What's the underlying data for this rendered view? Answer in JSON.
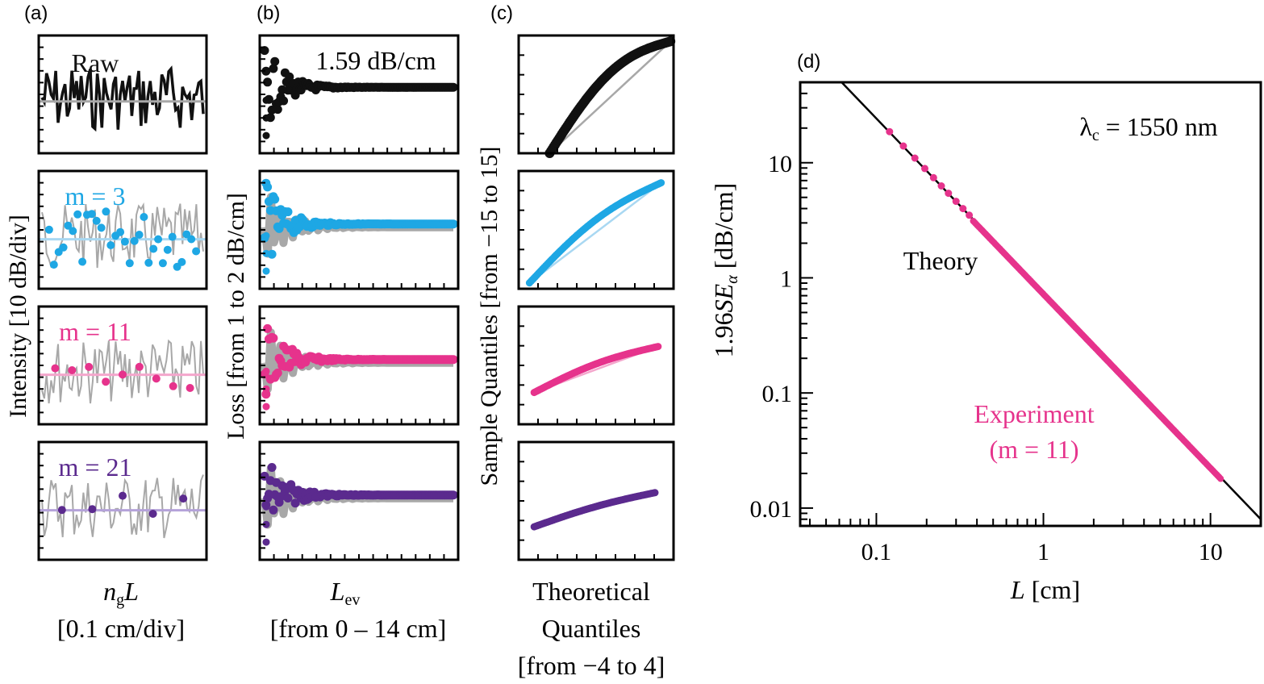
{
  "colors": {
    "black": "#111111",
    "raw_gray": "#a8a8a8",
    "m3": "#1ea7e4",
    "m3_light": "#a9d8f2",
    "m11": "#e6338c",
    "m11_light": "#f4a6cc",
    "m21": "#5b2a8e",
    "m21_light": "#b4a2d9",
    "theory": "#000000"
  },
  "panel_a": {
    "label": "(a)",
    "ylabel": "Intensity [10 dB/div]",
    "xlabel_var": "n",
    "xlabel_sub": "g",
    "xlabel_var2": "L",
    "xlabel_unit": "[0.1 cm/div]",
    "rows": [
      {
        "tag": "Raw",
        "color_key": "black"
      },
      {
        "tag": "m = 3",
        "color_key": "m3"
      },
      {
        "tag": "m = 11",
        "color_key": "m11"
      },
      {
        "tag": "m = 21",
        "color_key": "m21"
      }
    ]
  },
  "panel_b": {
    "label": "(b)",
    "ylabel": "Loss [from 1 to 2 dB/cm]",
    "xlabel_var": "L",
    "xlabel_sub": "ev",
    "xlabel_unit": "[from 0 – 14 cm]",
    "annotation": "1.59 dB/cm"
  },
  "panel_c": {
    "label": "(c)",
    "ylabel": "Sample Quantiles [from −15 to 15]",
    "xlabel_line1": "Theoretical",
    "xlabel_line2": "Quantiles",
    "xlabel_line3": "[from −4 to 4]"
  },
  "chart_data": {
    "type": "scatter",
    "label": "(d)",
    "xlabel_var": "L",
    "xlabel_unit": "[cm]",
    "ylabel_prefix": "1.96",
    "ylabel_var": "SE",
    "ylabel_sub": "α",
    "ylabel_unit": "[dB/cm]",
    "x_scale": "log",
    "y_scale": "log",
    "xlim": [
      0.035,
      20
    ],
    "ylim": [
      0.007,
      50
    ],
    "x_ticks": [
      0.1,
      1,
      10
    ],
    "x_tick_labels": [
      "0.1",
      "1",
      "10"
    ],
    "y_ticks": [
      0.01,
      0.1,
      1,
      10
    ],
    "y_tick_labels": [
      "0.01",
      "0.1",
      "1",
      "10"
    ],
    "annotation": "λ",
    "annotation_sub": "c",
    "annotation_rest": " = 1550 nm",
    "series": [
      {
        "name": "Theory",
        "kind": "line",
        "x": [
          0.062,
          20
        ],
        "y": [
          50,
          0.008
        ]
      },
      {
        "name": "Experiment",
        "name_line2": "(m = 11)",
        "kind": "scatter",
        "x_range": [
          0.12,
          11.5
        ],
        "y_at_range": [
          17.0,
          0.018
        ]
      }
    ]
  }
}
